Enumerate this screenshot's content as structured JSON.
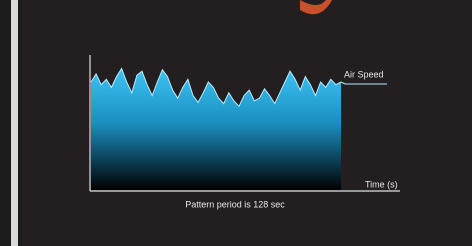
{
  "chart_data": {
    "type": "area",
    "series": [
      {
        "name": "Air Speed",
        "color": "#2ab4ec",
        "values": [
          80,
          86,
          78,
          82,
          76,
          84,
          90,
          80,
          72,
          85,
          88,
          78,
          70,
          80,
          89,
          84,
          74,
          68,
          76,
          82,
          70,
          65,
          72,
          80,
          76,
          68,
          64,
          72,
          66,
          62,
          70,
          74,
          66,
          68,
          75,
          70,
          64,
          72,
          80,
          88,
          82,
          74,
          84,
          78,
          70,
          80,
          76,
          82,
          78,
          80
        ]
      }
    ],
    "x_label": "Time (s)",
    "caption": "Pattern period is 128 sec",
    "ylim": [
      0,
      100
    ]
  }
}
